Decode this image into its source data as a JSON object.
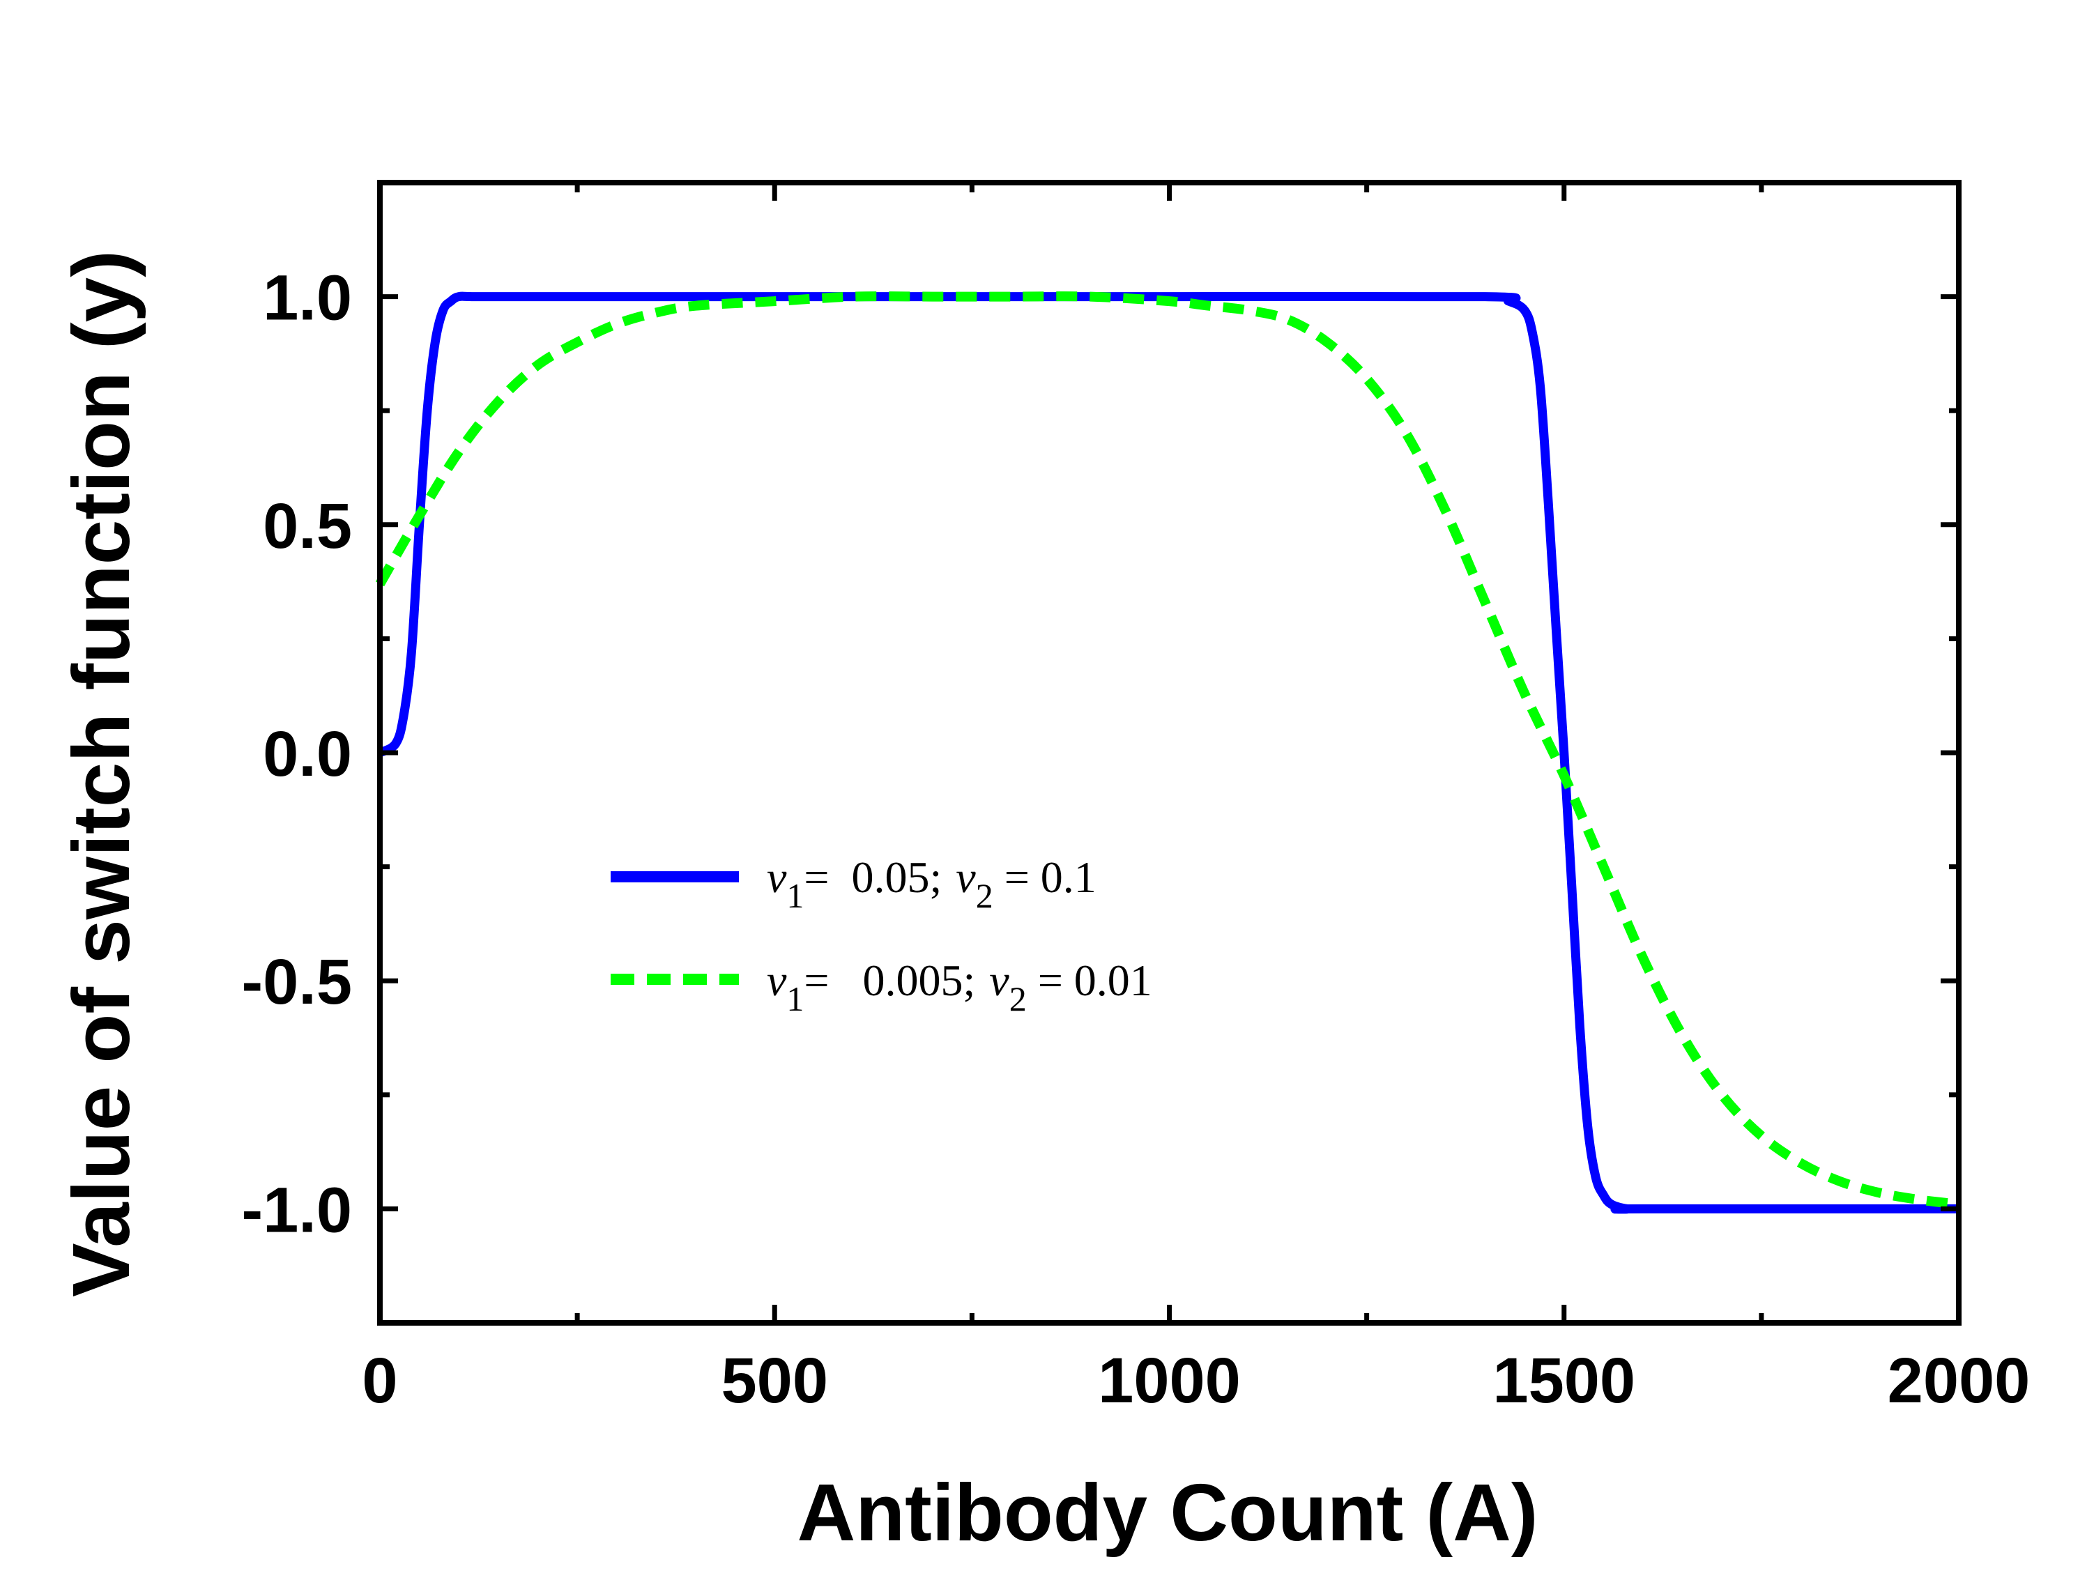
{
  "chart_data": {
    "type": "line",
    "xlabel": "Antibody Count (A)",
    "ylabel": "Value of switch function (y)",
    "xlim": [
      0,
      2000
    ],
    "ylim": [
      -1.25,
      1.25
    ],
    "xticks": [
      0,
      500,
      1000,
      1500,
      2000
    ],
    "xtick_labels": [
      "0",
      "500",
      "1000",
      "1500",
      "2000"
    ],
    "yticks": [
      1.0,
      0.5,
      0.0,
      -0.5,
      -1.0
    ],
    "ytick_labels": [
      "1.0",
      "0.5",
      "0.0",
      "-0.5",
      "-1.0"
    ],
    "grid": false,
    "legend_position": "center-left",
    "series": [
      {
        "name": "ν1=  0.05;  ν2 = 0.1",
        "legend_parts": {
          "v1_sym": "ν",
          "v1_sub": "1",
          "v1_val": "=  0.05;",
          "v2_sym": "ν",
          "v2_sub": "2",
          "v2_val": " = 0.1"
        },
        "color": "#0000ff",
        "style": "solid",
        "x": [
          0,
          20,
          30,
          40,
          50,
          60,
          70,
          80,
          90,
          100,
          120,
          200,
          500,
          1000,
          1400,
          1430,
          1450,
          1460,
          1470,
          1480,
          1490,
          1500,
          1510,
          1520,
          1530,
          1540,
          1550,
          1560,
          1580,
          1600,
          2000
        ],
        "y": [
          0.0,
          0.02,
          0.08,
          0.22,
          0.5,
          0.75,
          0.9,
          0.97,
          0.99,
          1.0,
          1.0,
          1.0,
          1.0,
          1.0,
          1.0,
          0.99,
          0.97,
          0.92,
          0.8,
          0.55,
          0.27,
          0.0,
          -0.3,
          -0.6,
          -0.82,
          -0.93,
          -0.97,
          -0.99,
          -1.0,
          -1.0,
          -1.0
        ]
      },
      {
        "name": "ν1=   0.005;  ν2 = 0.01",
        "legend_parts": {
          "v1_sym": "ν",
          "v1_sub": "1",
          "v1_val": "=   0.005;",
          "v2_sym": "ν",
          "v2_sub": "2",
          "v2_val": " = 0.01"
        },
        "color": "#00ff00",
        "style": "dashed",
        "x": [
          0,
          50,
          100,
          150,
          200,
          250,
          300,
          350,
          400,
          500,
          600,
          700,
          800,
          900,
          1000,
          1050,
          1100,
          1150,
          1200,
          1250,
          1300,
          1350,
          1400,
          1450,
          1500,
          1550,
          1600,
          1650,
          1700,
          1750,
          1800,
          1850,
          1900,
          1950,
          2000
        ],
        "y": [
          0.37,
          0.52,
          0.66,
          0.77,
          0.85,
          0.9,
          0.94,
          0.965,
          0.98,
          0.99,
          1.0,
          1.0,
          1.0,
          1.0,
          0.99,
          0.98,
          0.97,
          0.95,
          0.9,
          0.82,
          0.7,
          0.53,
          0.33,
          0.13,
          -0.05,
          -0.25,
          -0.45,
          -0.62,
          -0.75,
          -0.84,
          -0.9,
          -0.94,
          -0.965,
          -0.98,
          -0.99
        ]
      }
    ]
  }
}
